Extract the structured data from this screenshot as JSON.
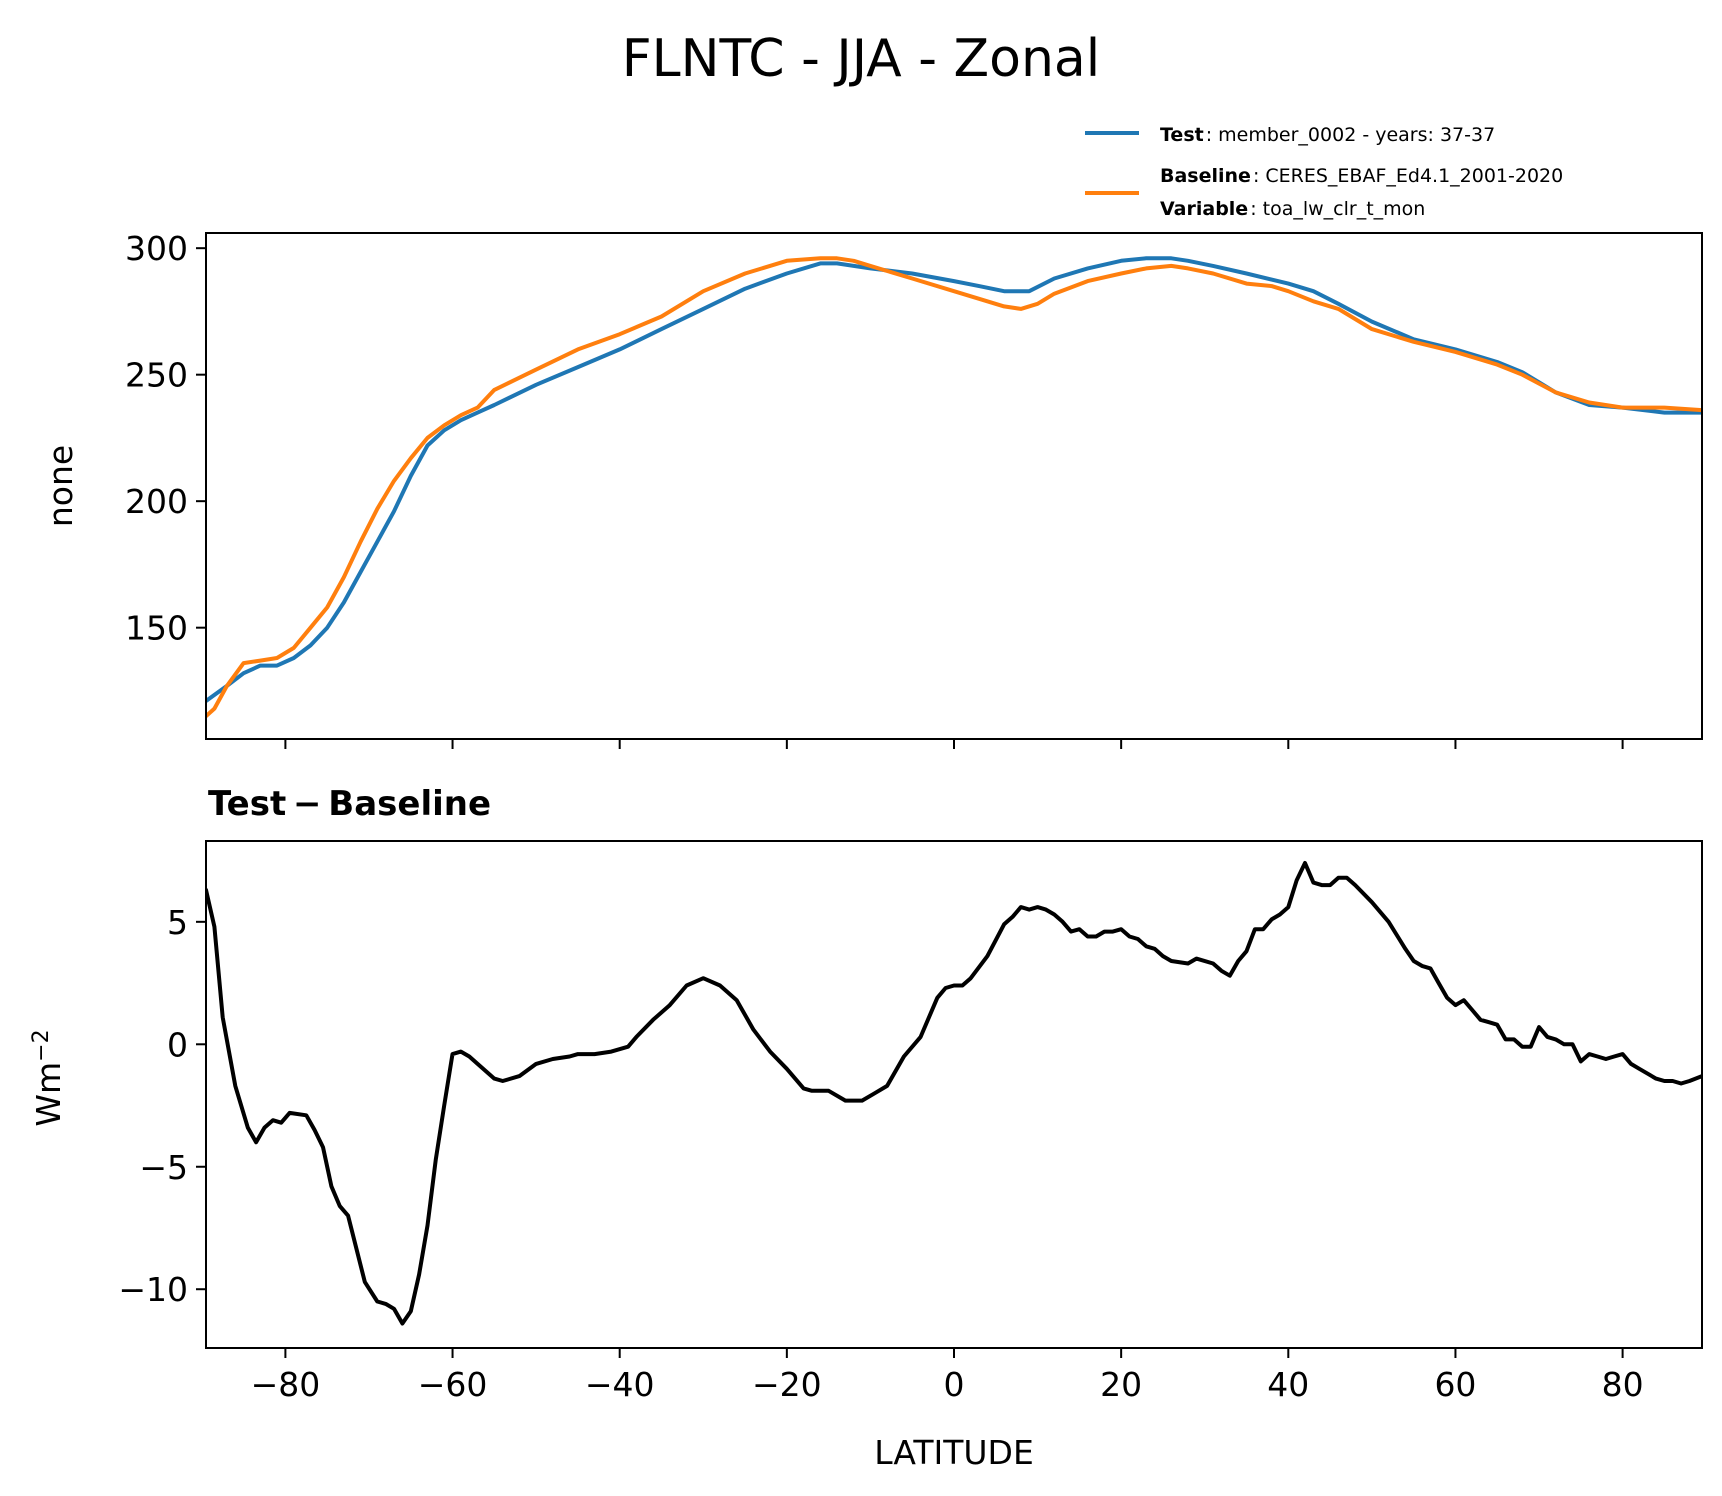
{
  "figure": {
    "title": "FLNTC - JJA - Zonal"
  },
  "legend": {
    "test_key": "Test",
    "test_value": ": member_0002 - years: 37-37",
    "baseline_key": "Baseline",
    "baseline_value": ": CERES_EBAF_Ed4.1_2001-2020",
    "variable_key": "Variable",
    "variable_value": ": toa_lw_clr_t_mon"
  },
  "chart_data": [
    {
      "type": "line",
      "ylabel": "none",
      "xlim": [
        -89.5,
        89.5
      ],
      "ylim": [
        106,
        306
      ],
      "yticks": [
        "150",
        "200",
        "250",
        "300"
      ],
      "ytick_values": [
        150,
        200,
        250,
        300
      ],
      "xticks_unlabeled": [
        -80,
        -60,
        -40,
        -20,
        0,
        20,
        40,
        60,
        80
      ],
      "grid": false,
      "legend_placement": "top-right, above plot",
      "series": [
        {
          "name": "Test",
          "color": "#1f77b4",
          "x": [
            -89.5,
            -87,
            -85,
            -83,
            -81,
            -79,
            -77,
            -75,
            -73,
            -71,
            -69,
            -67,
            -65,
            -63,
            -61,
            -59,
            -57,
            -55,
            -50,
            -45,
            -40,
            -35,
            -30,
            -25,
            -20,
            -16,
            -14,
            -12,
            -10,
            -5,
            0,
            3,
            6,
            9,
            12,
            16,
            20,
            23,
            26,
            28,
            31,
            35,
            40,
            43,
            46,
            50,
            55,
            60,
            65,
            68,
            72,
            76,
            80,
            85,
            89.5
          ],
          "y": [
            121,
            127,
            132,
            135,
            135,
            138,
            143,
            150,
            160,
            172,
            184,
            196,
            210,
            222,
            228,
            232,
            235,
            238,
            246,
            253,
            260,
            268,
            276,
            284,
            290,
            294,
            294,
            293,
            292,
            290,
            287,
            285,
            283,
            283,
            288,
            292,
            295,
            296,
            296,
            295,
            293,
            290,
            286,
            283,
            278,
            271,
            264,
            260,
            255,
            251,
            243,
            238,
            237,
            235,
            235
          ]
        },
        {
          "name": "Baseline",
          "color": "#ff7f0e",
          "x": [
            -89.5,
            -88.5,
            -87,
            -85,
            -83,
            -81,
            -79,
            -77,
            -75,
            -73,
            -71,
            -69,
            -67,
            -65,
            -63,
            -61,
            -59,
            -57,
            -55,
            -50,
            -45,
            -40,
            -35,
            -30,
            -25,
            -20,
            -16,
            -14,
            -12,
            -10,
            -5,
            0,
            3,
            6,
            8,
            10,
            12,
            16,
            20,
            23,
            26,
            28,
            31,
            35,
            38,
            40,
            43,
            46,
            50,
            55,
            60,
            65,
            68,
            72,
            76,
            80,
            85,
            89.5
          ],
          "y": [
            115,
            118,
            127,
            136,
            137,
            138,
            142,
            150,
            158,
            170,
            184,
            197,
            208,
            217,
            225,
            230,
            234,
            237,
            244,
            252,
            260,
            266,
            273,
            283,
            290,
            295,
            296,
            296,
            295,
            293,
            288,
            283,
            280,
            277,
            276,
            278,
            282,
            287,
            290,
            292,
            293,
            292,
            290,
            286,
            285,
            283,
            279,
            276,
            268,
            263,
            259,
            254,
            250,
            243,
            239,
            237,
            237,
            236
          ]
        }
      ]
    },
    {
      "type": "line",
      "title": "Test − Baseline",
      "xlabel": "LATITUDE",
      "ylabel": "Wm",
      "ylabel_superscript": "−2",
      "xlim": [
        -89.5,
        89.5
      ],
      "ylim": [
        -12.4,
        8.3
      ],
      "yticks": [
        "−10",
        "−5",
        "0",
        "5"
      ],
      "ytick_values": [
        -10,
        -5,
        0,
        5
      ],
      "xticks": [
        "−80",
        "−60",
        "−40",
        "−20",
        "0",
        "20",
        "40",
        "60",
        "80"
      ],
      "xtick_values": [
        -80,
        -60,
        -40,
        -20,
        0,
        20,
        40,
        60,
        80
      ],
      "grid": false,
      "series": [
        {
          "color": "#000000",
          "x": [
            -89.5,
            -88.5,
            -87.5,
            -86,
            -84.5,
            -83.5,
            -82.5,
            -81.5,
            -80.5,
            -79.5,
            -77.5,
            -76.5,
            -75.5,
            -74.5,
            -73.5,
            -72.5,
            -70.5,
            -69,
            -68,
            -67,
            -66,
            -65,
            -64,
            -63,
            -62,
            -61,
            -60,
            -59,
            -58,
            -57,
            -55,
            -54,
            -52,
            -50,
            -48,
            -46,
            -45,
            -43,
            -41,
            -39,
            -38,
            -36,
            -34,
            -32,
            -30,
            -28,
            -26,
            -24,
            -22,
            -20,
            -18,
            -17,
            -15,
            -13,
            -11,
            -9.5,
            -8,
            -6,
            -4,
            -2,
            -1,
            0,
            1,
            2,
            4,
            6,
            7,
            8,
            9,
            10,
            11,
            12,
            13,
            14,
            15,
            16,
            17,
            18,
            19,
            20,
            21,
            22,
            23,
            24,
            25,
            26,
            28,
            29,
            31,
            32,
            33,
            34,
            35,
            36,
            37,
            38,
            39,
            40,
            41,
            42,
            43,
            44,
            45,
            46,
            47,
            48,
            50,
            52,
            54,
            55,
            56,
            57,
            58,
            59,
            60,
            61,
            62,
            63,
            64,
            65,
            66,
            67,
            68,
            69,
            70,
            71,
            72,
            73,
            74,
            75,
            76,
            77,
            78,
            79,
            80,
            81,
            82,
            83,
            84,
            85,
            86,
            87,
            88,
            89.5
          ],
          "y": [
            6.3,
            4.8,
            1.1,
            -1.7,
            -3.4,
            -4.0,
            -3.4,
            -3.1,
            -3.2,
            -2.8,
            -2.9,
            -3.5,
            -4.2,
            -5.8,
            -6.6,
            -7.0,
            -9.7,
            -10.5,
            -10.6,
            -10.8,
            -11.4,
            -10.9,
            -9.4,
            -7.4,
            -4.7,
            -2.5,
            -0.4,
            -0.3,
            -0.5,
            -0.8,
            -1.4,
            -1.5,
            -1.3,
            -0.8,
            -0.6,
            -0.5,
            -0.4,
            -0.4,
            -0.3,
            -0.1,
            0.3,
            1.0,
            1.6,
            2.4,
            2.7,
            2.4,
            1.8,
            0.6,
            -0.3,
            -1.0,
            -1.8,
            -1.9,
            -1.9,
            -2.3,
            -2.3,
            -2.0,
            -1.7,
            -0.5,
            0.3,
            1.9,
            2.3,
            2.4,
            2.4,
            2.7,
            3.6,
            4.9,
            5.2,
            5.6,
            5.5,
            5.6,
            5.5,
            5.3,
            5.0,
            4.6,
            4.7,
            4.4,
            4.4,
            4.6,
            4.6,
            4.7,
            4.4,
            4.3,
            4.0,
            3.9,
            3.6,
            3.4,
            3.3,
            3.5,
            3.3,
            3.0,
            2.8,
            3.4,
            3.8,
            4.7,
            4.7,
            5.1,
            5.3,
            5.6,
            6.7,
            7.4,
            6.6,
            6.5,
            6.5,
            6.8,
            6.8,
            6.5,
            5.8,
            5.0,
            3.9,
            3.4,
            3.2,
            3.1,
            2.5,
            1.9,
            1.6,
            1.8,
            1.4,
            1.0,
            0.9,
            0.8,
            0.2,
            0.2,
            -0.1,
            -0.1,
            0.7,
            0.3,
            0.2,
            0.0,
            0.0,
            -0.7,
            -0.4,
            -0.5,
            -0.6,
            -0.5,
            -0.4,
            -0.8,
            -1.0,
            -1.2,
            -1.4,
            -1.5,
            -1.5,
            -1.6,
            -1.5,
            -1.3
          ]
        }
      ]
    }
  ]
}
